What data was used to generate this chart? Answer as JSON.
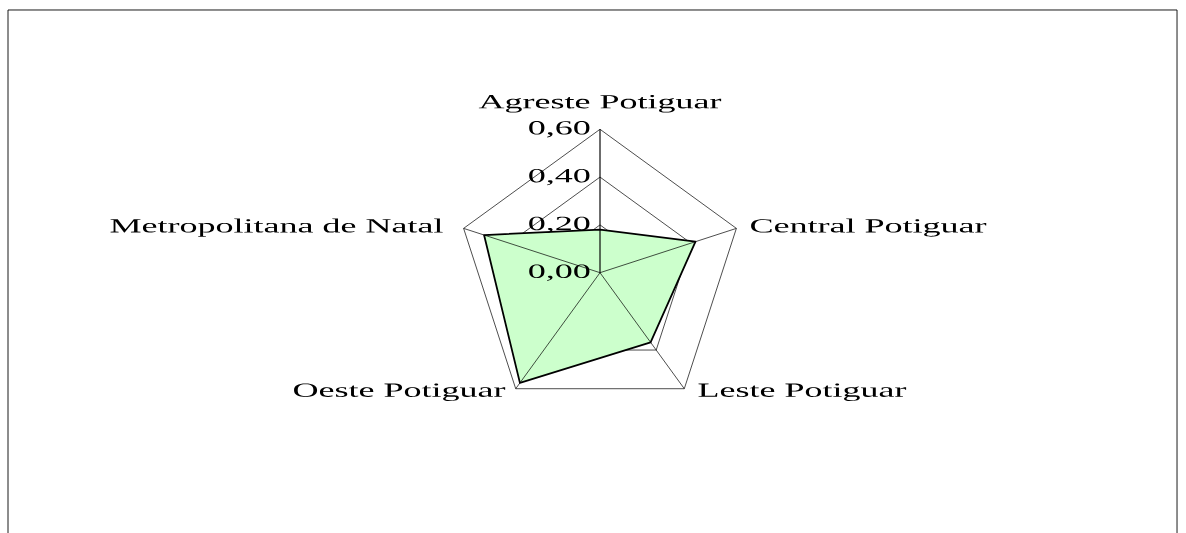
{
  "chart_data": {
    "type": "radar",
    "categories": [
      "Agreste Potiguar",
      "Central Potiguar",
      "Leste Potiguar",
      "Oeste Potiguar",
      "Metropolitana de Natal"
    ],
    "series": [
      {
        "color": "#ccffcc",
        "values": [
          0.18,
          0.42,
          0.36,
          0.57,
          0.51
        ]
      }
    ],
    "ylim": [
      0,
      0.6
    ],
    "yticks": [
      {
        "value": 0,
        "label": "0,00"
      },
      {
        "value": 0.2,
        "label": "0,20"
      },
      {
        "value": 0.4,
        "label": "0,40"
      },
      {
        "value": 0.6,
        "label": "0,60"
      }
    ],
    "grid": true,
    "line_style": "solid"
  }
}
